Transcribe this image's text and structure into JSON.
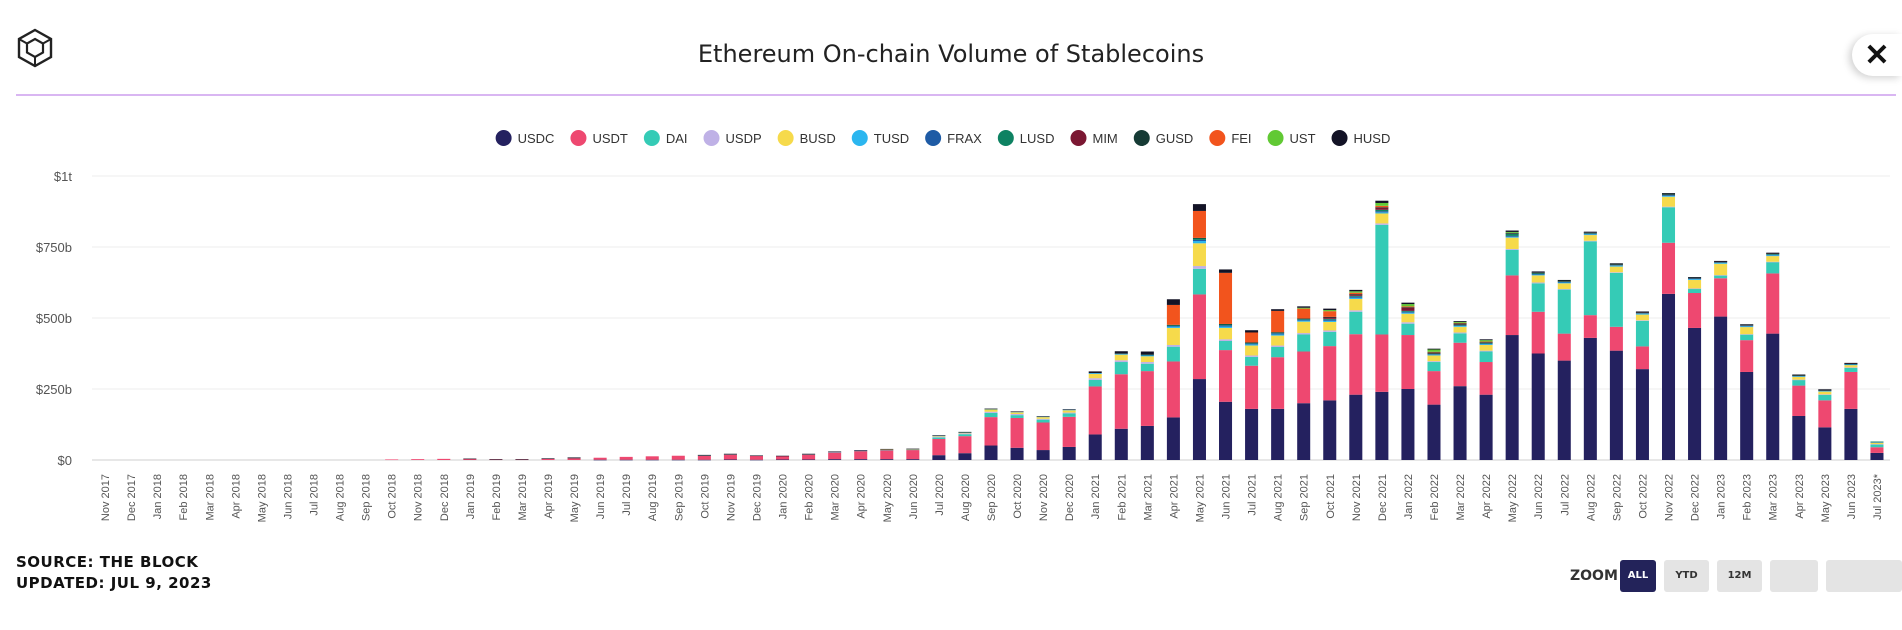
{
  "header": {
    "title": "Ethereum On-chain Volume of Stablecoins",
    "close_label": "✕"
  },
  "footer": {
    "source": "SOURCE: THE BLOCK",
    "updated": "UPDATED: JUL 9, 2023"
  },
  "zoom": {
    "label": "ZOOM",
    "buttons": [
      "ALL",
      "YTD",
      "12M",
      "",
      ""
    ],
    "active": "ALL"
  },
  "icons": {
    "logo": "the-block-logo-icon",
    "close": "close-icon"
  },
  "chart_data": {
    "type": "bar",
    "stacked": true,
    "title": "Ethereum On-chain Volume of Stablecoins",
    "xlabel": "",
    "ylabel": "",
    "ylim": [
      0,
      1000
    ],
    "unit": "billion USD",
    "y_ticks": [
      "$0",
      "$250b",
      "$500b",
      "$750b",
      "$1t"
    ],
    "grid": true,
    "legend_position": "top-center",
    "categories": [
      "Nov 2017",
      "Dec 2017",
      "Jan 2018",
      "Feb 2018",
      "Mar 2018",
      "Apr 2018",
      "May 2018",
      "Jun 2018",
      "Jul 2018",
      "Aug 2018",
      "Sep 2018",
      "Oct 2018",
      "Nov 2018",
      "Dec 2018",
      "Jan 2019",
      "Feb 2019",
      "Mar 2019",
      "Apr 2019",
      "May 2019",
      "Jun 2019",
      "Jul 2019",
      "Aug 2019",
      "Sep 2019",
      "Oct 2019",
      "Nov 2019",
      "Dec 2019",
      "Jan 2020",
      "Feb 2020",
      "Mar 2020",
      "Apr 2020",
      "May 2020",
      "Jun 2020",
      "Jul 2020",
      "Aug 2020",
      "Sep 2020",
      "Oct 2020",
      "Nov 2020",
      "Dec 2020",
      "Jan 2021",
      "Feb 2021",
      "Mar 2021",
      "Apr 2021",
      "May 2021",
      "Jun 2021",
      "Jul 2021",
      "Aug 2021",
      "Sep 2021",
      "Oct 2021",
      "Nov 2021",
      "Dec 2021",
      "Jan 2022",
      "Feb 2022",
      "Mar 2022",
      "Apr 2022",
      "May 2022",
      "Jun 2022",
      "Jul 2022",
      "Aug 2022",
      "Sep 2022",
      "Oct 2022",
      "Nov 2022",
      "Dec 2022",
      "Jan 2023",
      "Feb 2023",
      "Mar 2023",
      "Apr 2023",
      "May 2023",
      "Jun 2023",
      "Jul 2023*"
    ],
    "series": [
      {
        "name": "USDC",
        "color": "#24215f",
        "values": [
          0,
          0,
          0,
          0,
          0,
          0,
          0,
          0,
          0,
          0,
          0,
          0,
          0,
          0,
          0,
          0,
          0,
          0,
          0,
          1,
          1,
          1,
          1,
          1,
          2,
          1,
          2,
          2,
          3,
          3,
          3,
          3,
          17,
          24,
          51,
          43,
          35,
          46,
          90,
          110,
          120,
          150,
          285,
          205,
          180,
          180,
          200,
          210,
          230,
          240,
          250,
          195,
          260,
          230,
          440,
          375,
          350,
          430,
          385,
          320,
          585,
          465,
          505,
          310,
          445,
          155,
          115,
          180,
          25
        ]
      },
      {
        "name": "USDT",
        "color": "#ee4870",
        "values": [
          0,
          0,
          0,
          0,
          0,
          0,
          0,
          0,
          0,
          0,
          0,
          2,
          3,
          4,
          4,
          2,
          2,
          4,
          6,
          7,
          10,
          12,
          14,
          15,
          18,
          14,
          12,
          18,
          24,
          29,
          32,
          32,
          57,
          60,
          100,
          105,
          97,
          106,
          169,
          192,
          193,
          197,
          298,
          182,
          152,
          182,
          182,
          191,
          213,
          202,
          190,
          118,
          153,
          115,
          210,
          147,
          95,
          80,
          84,
          80,
          180,
          123,
          135,
          112,
          212,
          107,
          95,
          130,
          20
        ]
      },
      {
        "name": "DAI",
        "color": "#35cbb6",
        "values": [
          0,
          0,
          0,
          0,
          0,
          0,
          0,
          0,
          0,
          0,
          0,
          0,
          0,
          0,
          0,
          0,
          0,
          0,
          0,
          0,
          0,
          0,
          0,
          1,
          1,
          0,
          0,
          1,
          1,
          1,
          1,
          2,
          5,
          7,
          15,
          10,
          10,
          12,
          23,
          43,
          26,
          52,
          90,
          32,
          31,
          36,
          60,
          50,
          79,
          386,
          40,
          32,
          33,
          37,
          90,
          100,
          155,
          260,
          190,
          90,
          125,
          15,
          10,
          20,
          40,
          20,
          20,
          15,
          10
        ]
      },
      {
        "name": "USDP",
        "color": "#bfb1e6",
        "values": [
          0,
          0,
          0,
          0,
          0,
          0,
          0,
          0,
          0,
          0,
          0,
          0,
          0,
          0,
          0,
          0,
          0,
          0,
          0,
          0,
          0,
          0,
          0,
          0,
          0,
          0,
          0,
          0,
          1,
          1,
          1,
          1,
          3,
          3,
          4,
          4,
          3,
          3,
          6,
          6,
          6,
          6,
          10,
          6,
          5,
          5,
          5,
          5,
          5,
          5,
          5,
          3,
          3,
          3,
          3,
          3,
          2,
          2,
          2,
          2,
          2,
          1,
          1,
          1,
          1,
          1,
          1,
          1,
          1
        ]
      },
      {
        "name": "BUSD",
        "color": "#f6da4b",
        "values": [
          0,
          0,
          0,
          0,
          0,
          0,
          0,
          0,
          0,
          0,
          0,
          0,
          0,
          0,
          0,
          0,
          0,
          0,
          0,
          0,
          0,
          0,
          0,
          0,
          0,
          0,
          0,
          0,
          0,
          0,
          1,
          1,
          3,
          3,
          8,
          6,
          6,
          8,
          15,
          20,
          20,
          60,
          80,
          40,
          35,
          35,
          40,
          30,
          40,
          35,
          30,
          20,
          20,
          20,
          40,
          25,
          20,
          20,
          20,
          20,
          35,
          30,
          40,
          25,
          20,
          10,
          10,
          8,
          5
        ]
      },
      {
        "name": "TUSD",
        "color": "#2bb6ef",
        "values": [
          0,
          0,
          0,
          0,
          0,
          0,
          0,
          0,
          0,
          0,
          0,
          0,
          0,
          0,
          0,
          0,
          0,
          0,
          0,
          0,
          0,
          0,
          0,
          0,
          0,
          0,
          0,
          0,
          0,
          0,
          0,
          0,
          1,
          1,
          2,
          2,
          2,
          2,
          3,
          3,
          3,
          5,
          8,
          5,
          4,
          4,
          4,
          4,
          4,
          4,
          4,
          3,
          3,
          3,
          3,
          3,
          3,
          3,
          3,
          3,
          3,
          3,
          3,
          3,
          3,
          3,
          3,
          3,
          2
        ]
      },
      {
        "name": "FRAX",
        "color": "#1e5ba5",
        "values": [
          0,
          0,
          0,
          0,
          0,
          0,
          0,
          0,
          0,
          0,
          0,
          0,
          0,
          0,
          0,
          0,
          0,
          0,
          0,
          0,
          0,
          0,
          0,
          0,
          0,
          0,
          0,
          0,
          0,
          0,
          0,
          0,
          0,
          0,
          0,
          0,
          0,
          0,
          0,
          1,
          2,
          2,
          4,
          4,
          3,
          4,
          3,
          4,
          4,
          4,
          3,
          2,
          2,
          2,
          3,
          2,
          2,
          2,
          2,
          2,
          3,
          2,
          2,
          2,
          2,
          1,
          1,
          1,
          1
        ]
      },
      {
        "name": "LUSD",
        "color": "#0e8262",
        "values": [
          0,
          0,
          0,
          0,
          0,
          0,
          0,
          0,
          0,
          0,
          0,
          0,
          0,
          0,
          0,
          0,
          0,
          0,
          0,
          0,
          0,
          0,
          0,
          0,
          0,
          0,
          0,
          0,
          0,
          0,
          0,
          0,
          0,
          0,
          0,
          0,
          0,
          0,
          0,
          0,
          1,
          3,
          5,
          4,
          3,
          3,
          3,
          3,
          3,
          5,
          3,
          2,
          3,
          3,
          8,
          4,
          3,
          3,
          3,
          2,
          3,
          2,
          2,
          2,
          4,
          1,
          1,
          1,
          1
        ]
      },
      {
        "name": "MIM",
        "color": "#7b1732",
        "values": [
          0,
          0,
          0,
          0,
          0,
          0,
          0,
          0,
          0,
          0,
          0,
          0,
          0,
          0,
          0,
          0,
          0,
          0,
          0,
          0,
          0,
          0,
          0,
          0,
          0,
          0,
          0,
          0,
          0,
          0,
          0,
          0,
          0,
          0,
          0,
          0,
          0,
          0,
          0,
          0,
          0,
          0,
          0,
          0,
          0,
          0,
          0,
          6,
          5,
          8,
          12,
          3,
          3,
          2,
          2,
          1,
          1,
          1,
          1,
          1,
          1,
          1,
          1,
          1,
          1,
          1,
          1,
          1,
          0
        ]
      },
      {
        "name": "GUSD",
        "color": "#163b35",
        "values": [
          0,
          0,
          0,
          0,
          0,
          0,
          0,
          0,
          0,
          0,
          0,
          0,
          0,
          0,
          0,
          0,
          0,
          0,
          0,
          0,
          0,
          0,
          0,
          0,
          0,
          0,
          0,
          0,
          0,
          0,
          0,
          0,
          0,
          0,
          0,
          0,
          0,
          0,
          0,
          1,
          1,
          1,
          2,
          1,
          1,
          1,
          1,
          1,
          1,
          1,
          1,
          1,
          1,
          1,
          1,
          1,
          1,
          1,
          1,
          1,
          1,
          1,
          1,
          1,
          1,
          1,
          1,
          1,
          0
        ]
      },
      {
        "name": "FEI",
        "color": "#f2541d",
        "values": [
          0,
          0,
          0,
          0,
          0,
          0,
          0,
          0,
          0,
          0,
          0,
          0,
          0,
          0,
          0,
          0,
          0,
          0,
          0,
          0,
          0,
          0,
          0,
          0,
          0,
          0,
          0,
          0,
          0,
          0,
          0,
          0,
          0,
          0,
          0,
          0,
          0,
          0,
          0,
          0,
          0,
          70,
          95,
          180,
          35,
          75,
          35,
          20,
          5,
          5,
          3,
          2,
          2,
          1,
          0,
          0,
          0,
          0,
          0,
          0,
          0,
          0,
          0,
          0,
          0,
          0,
          0,
          0,
          0
        ]
      },
      {
        "name": "UST",
        "color": "#61c934",
        "values": [
          0,
          0,
          0,
          0,
          0,
          0,
          0,
          0,
          0,
          0,
          0,
          0,
          0,
          0,
          0,
          0,
          0,
          0,
          0,
          0,
          0,
          0,
          0,
          0,
          0,
          0,
          0,
          0,
          0,
          0,
          0,
          0,
          0,
          0,
          0,
          0,
          0,
          0,
          0,
          0,
          0,
          0,
          0,
          0,
          0,
          0,
          3,
          4,
          5,
          10,
          8,
          8,
          3,
          5,
          3,
          0,
          0,
          0,
          0,
          0,
          0,
          0,
          0,
          0,
          0,
          0,
          0,
          0,
          0
        ]
      },
      {
        "name": "HUSD",
        "color": "#131326",
        "values": [
          0,
          0,
          0,
          0,
          0,
          0,
          0,
          0,
          0,
          0,
          0,
          0,
          0,
          0,
          1,
          1,
          1,
          2,
          3,
          0,
          0,
          0,
          0,
          1,
          1,
          1,
          1,
          1,
          1,
          1,
          1,
          1,
          1,
          1,
          1,
          1,
          1,
          2,
          6,
          7,
          10,
          20,
          24,
          12,
          8,
          6,
          5,
          5,
          5,
          8,
          5,
          3,
          3,
          3,
          5,
          3,
          2,
          2,
          2,
          2,
          2,
          1,
          1,
          1,
          1,
          1,
          1,
          1,
          0
        ]
      }
    ]
  }
}
